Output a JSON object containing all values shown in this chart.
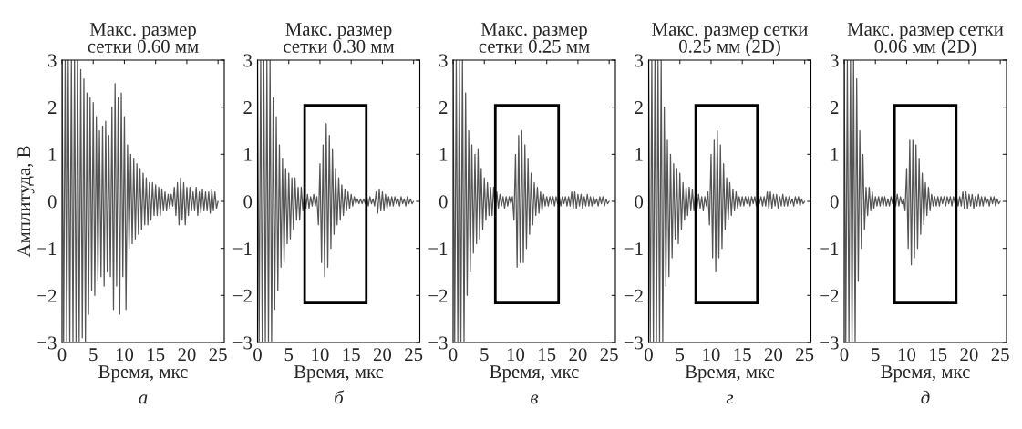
{
  "chart_data": [
    {
      "type": "line",
      "title": "Макс. размер\nсетки 0.60 мм",
      "xlabel": "Время, мкс",
      "ylabel": "Амплитуда, В",
      "annotations": [
        "а"
      ],
      "xlim": [
        0,
        26
      ],
      "xticks": [
        0,
        5,
        10,
        15,
        20,
        25
      ],
      "ylim": [
        -3,
        3
      ],
      "yticks": [
        {
          "value": -3,
          "label": "−3"
        },
        {
          "value": -2,
          "label": "−2"
        },
        {
          "value": -1,
          "label": "−1"
        },
        0,
        1,
        2,
        3
      ],
      "series": [
        {
          "color": "#555555",
          "x": [
            0,
            0.25,
            0.5,
            0.75,
            1,
            1.25,
            1.5,
            1.75,
            2,
            2.25,
            2.5,
            2.75,
            3,
            3.25,
            3.5,
            3.75,
            4,
            4.25,
            4.5,
            4.75,
            5,
            5.25,
            5.5,
            5.75,
            6,
            6.25,
            6.5,
            6.75,
            7,
            7.25,
            7.5,
            7.75,
            8,
            8.25,
            8.5,
            8.75,
            9,
            9.25,
            9.5,
            9.75,
            10,
            10.25,
            10.5,
            10.75,
            11,
            11.25,
            11.5,
            11.75,
            12,
            12.25,
            12.5,
            12.75,
            13,
            13.25,
            13.5,
            13.75,
            14,
            14.25,
            14.5,
            14.75,
            15,
            15.25,
            15.5,
            15.75,
            16,
            16.25,
            16.5,
            16.75,
            17,
            17.25,
            17.5,
            17.75,
            18,
            18.25,
            18.5,
            18.75,
            19,
            19.25,
            19.5,
            19.75,
            20,
            20.25,
            20.5,
            20.75,
            21,
            21.25,
            21.5,
            21.75,
            22,
            22.25,
            22.5,
            22.75,
            23,
            23.25,
            23.5,
            23.75,
            24,
            24.25,
            24.5,
            24.75,
            25
          ],
          "values": [
            3,
            -3,
            3,
            -3,
            3,
            -3,
            3,
            -3,
            3,
            -3,
            3,
            -3,
            2.8,
            -2.9,
            2.6,
            -3,
            2.3,
            -2.4,
            2.2,
            -1.9,
            2.1,
            -2.0,
            1.8,
            -1.7,
            1.5,
            -1.6,
            1.6,
            -1.8,
            1.7,
            -1.5,
            1.4,
            -1.6,
            2.0,
            -2.3,
            2.5,
            -1.8,
            2.2,
            -2.4,
            2.3,
            -1.6,
            1.8,
            -2.3,
            1.2,
            -1.0,
            1.0,
            -0.9,
            0.9,
            -0.8,
            0.8,
            -0.7,
            0.7,
            -0.6,
            0.6,
            -0.5,
            0.5,
            -0.5,
            0.4,
            -0.4,
            0.4,
            -0.3,
            0.35,
            -0.3,
            0.3,
            -0.3,
            0.25,
            -0.2,
            0.2,
            -0.2,
            0.15,
            -0.15,
            0.15,
            -0.1,
            0.3,
            -0.3,
            0.4,
            -0.5,
            0.5,
            -0.4,
            0.4,
            -0.5,
            0.3,
            -0.3,
            0.3,
            -0.2,
            0.2,
            -0.2,
            0.3,
            -0.3,
            0.2,
            -0.25,
            0.25,
            -0.2,
            0.2,
            -0.2,
            0.2,
            -0.25,
            0.25,
            -0.2,
            0.2,
            -0.15,
            0
          ]
        }
      ]
    },
    {
      "type": "line",
      "title": "Макс. размер\nсетки 0.30 мм",
      "xlabel": "Время, мкс",
      "annotations": [
        "б"
      ],
      "xlim": [
        0,
        26
      ],
      "xticks": [
        0,
        5,
        10,
        15,
        20,
        25
      ],
      "ylim": [
        -3,
        3
      ],
      "yticks": [
        {
          "value": -3,
          "label": "−3"
        },
        {
          "value": -2,
          "label": "−2"
        },
        {
          "value": -1,
          "label": "−1"
        },
        0,
        1,
        2,
        3
      ],
      "series": [
        {
          "color": "#555555",
          "x": [
            0,
            0.25,
            0.5,
            0.75,
            1,
            1.25,
            1.5,
            1.75,
            2,
            2.25,
            2.5,
            2.75,
            3,
            3.25,
            3.5,
            3.75,
            4,
            4.25,
            4.5,
            4.75,
            5,
            5.25,
            5.5,
            5.75,
            6,
            6.25,
            6.5,
            6.75,
            7,
            7.25,
            7.5,
            7.75,
            8,
            8.25,
            8.5,
            8.75,
            9,
            9.25,
            9.5,
            9.75,
            10,
            10.25,
            10.5,
            10.75,
            11,
            11.25,
            11.5,
            11.75,
            12,
            12.25,
            12.5,
            12.75,
            13,
            13.25,
            13.5,
            13.75,
            14,
            14.25,
            14.5,
            14.75,
            15,
            15.25,
            15.5,
            15.75,
            16,
            16.25,
            16.5,
            16.75,
            17,
            17.25,
            17.5,
            17.75,
            18,
            18.25,
            18.5,
            18.75,
            19,
            19.25,
            19.5,
            19.75,
            20,
            20.25,
            20.5,
            20.75,
            21,
            21.25,
            21.5,
            21.75,
            22,
            22.25,
            22.5,
            22.75,
            23,
            23.25,
            23.5,
            23.75,
            24,
            24.25,
            24.5,
            24.75,
            25
          ],
          "values": [
            3,
            -3,
            3,
            -3,
            3,
            -3,
            3,
            -3,
            3,
            -3,
            2.2,
            -2.3,
            1.8,
            -1.9,
            1.2,
            -1.4,
            0.9,
            -1.3,
            0.7,
            -0.9,
            0.6,
            -0.8,
            0.5,
            -0.6,
            0.5,
            -0.4,
            0.3,
            -0.4,
            0.3,
            -0.2,
            0.2,
            -0.15,
            0.15,
            -0.15,
            0.1,
            -0.1,
            0.15,
            -0.1,
            0.1,
            -0.5,
            0.8,
            -1.3,
            1.2,
            -1.6,
            1.65,
            -1.4,
            1.4,
            -1.0,
            1.1,
            -0.7,
            0.7,
            -0.5,
            0.5,
            -0.4,
            0.35,
            -0.3,
            0.25,
            -0.2,
            0.2,
            -0.15,
            0.15,
            -0.1,
            0.1,
            -0.05,
            0.05,
            -0.05,
            0.05,
            -0.05,
            0.05,
            -0.05,
            0.1,
            -0.1,
            0.1,
            -0.05,
            0.05,
            -0.1,
            0.2,
            -0.25,
            0.25,
            -0.2,
            0.2,
            -0.2,
            0.15,
            -0.15,
            0.1,
            -0.1,
            0.1,
            -0.1,
            0.1,
            -0.05,
            0.05,
            -0.1,
            0.1,
            -0.05,
            0.05,
            -0.1,
            0.1,
            -0.05,
            0.05,
            -0.05,
            0
          ]
        }
      ]
    },
    {
      "type": "line",
      "title": "Макс. размер\nсетки 0.25 мм",
      "xlabel": "Время, мкс",
      "annotations": [
        "в"
      ],
      "xlim": [
        0,
        26
      ],
      "xticks": [
        0,
        5,
        10,
        15,
        20,
        25
      ],
      "ylim": [
        -3,
        3
      ],
      "yticks": [
        {
          "value": -3,
          "label": "−3"
        },
        {
          "value": -2,
          "label": "−2"
        },
        {
          "value": -1,
          "label": "−1"
        },
        0,
        1,
        2,
        3
      ],
      "series": [
        {
          "color": "#555555",
          "x": [
            0,
            0.25,
            0.5,
            0.75,
            1,
            1.25,
            1.5,
            1.75,
            2,
            2.25,
            2.5,
            2.75,
            3,
            3.25,
            3.5,
            3.75,
            4,
            4.25,
            4.5,
            4.75,
            5,
            5.25,
            5.5,
            5.75,
            6,
            6.25,
            6.5,
            6.75,
            7,
            7.25,
            7.5,
            7.75,
            8,
            8.25,
            8.5,
            8.75,
            9,
            9.25,
            9.5,
            9.75,
            10,
            10.25,
            10.5,
            10.75,
            11,
            11.25,
            11.5,
            11.75,
            12,
            12.25,
            12.5,
            12.75,
            13,
            13.25,
            13.5,
            13.75,
            14,
            14.25,
            14.5,
            14.75,
            15,
            15.25,
            15.5,
            15.75,
            16,
            16.25,
            16.5,
            16.75,
            17,
            17.25,
            17.5,
            17.75,
            18,
            18.25,
            18.5,
            18.75,
            19,
            19.25,
            19.5,
            19.75,
            20,
            20.25,
            20.5,
            20.75,
            21,
            21.25,
            21.5,
            21.75,
            22,
            22.25,
            22.5,
            22.75,
            23,
            23.25,
            23.5,
            23.75,
            24,
            24.25,
            24.5,
            24.75,
            25
          ],
          "values": [
            3,
            -3,
            3,
            -3,
            3,
            -3,
            3,
            -3,
            2.3,
            -2.0,
            1.5,
            -1.5,
            1.2,
            -1.1,
            1.0,
            -0.9,
            1.1,
            -0.8,
            0.7,
            -0.6,
            0.5,
            -0.4,
            0.4,
            -0.3,
            0.3,
            -0.3,
            0.3,
            -0.2,
            0.2,
            -0.15,
            0.15,
            -0.1,
            0.1,
            -0.15,
            0.1,
            -0.1,
            0.1,
            -0.05,
            0.1,
            -0.4,
            1.0,
            -1.4,
            1.4,
            -1.3,
            1.5,
            -1.3,
            1.2,
            -1.0,
            0.9,
            -0.7,
            0.6,
            -0.5,
            0.4,
            -0.3,
            0.3,
            -0.25,
            0.2,
            -0.2,
            0.15,
            -0.1,
            0.1,
            -0.1,
            0.1,
            -0.05,
            0.1,
            -0.1,
            0.1,
            -0.05,
            0.1,
            -0.1,
            0.1,
            -0.05,
            0.1,
            -0.1,
            0.1,
            -0.1,
            0.2,
            -0.15,
            0.2,
            -0.15,
            0.15,
            -0.1,
            0.15,
            -0.15,
            0.1,
            -0.1,
            0.15,
            -0.1,
            0.1,
            -0.1,
            0.1,
            -0.05,
            0.05,
            -0.1,
            0.1,
            -0.05,
            0.1,
            -0.1,
            0.05,
            -0.05,
            0
          ]
        }
      ]
    },
    {
      "type": "line",
      "title": "Макс. размер сетки\n0.25 мм (2D)",
      "xlabel": "Время, мкс",
      "annotations": [
        "г"
      ],
      "xlim": [
        0,
        26
      ],
      "xticks": [
        0,
        5,
        10,
        15,
        20,
        25
      ],
      "ylim": [
        -3,
        3
      ],
      "yticks": [
        {
          "value": -3,
          "label": "−3"
        },
        {
          "value": -2,
          "label": "−2"
        },
        {
          "value": -1,
          "label": "−1"
        },
        0,
        1,
        2,
        3
      ],
      "series": [
        {
          "color": "#555555",
          "x": [
            0,
            0.25,
            0.5,
            0.75,
            1,
            1.25,
            1.5,
            1.75,
            2,
            2.25,
            2.5,
            2.75,
            3,
            3.25,
            3.5,
            3.75,
            4,
            4.25,
            4.5,
            4.75,
            5,
            5.25,
            5.5,
            5.75,
            6,
            6.25,
            6.5,
            6.75,
            7,
            7.25,
            7.5,
            7.75,
            8,
            8.25,
            8.5,
            8.75,
            9,
            9.25,
            9.5,
            9.75,
            10,
            10.25,
            10.5,
            10.75,
            11,
            11.25,
            11.5,
            11.75,
            12,
            12.25,
            12.5,
            12.75,
            13,
            13.25,
            13.5,
            13.75,
            14,
            14.25,
            14.5,
            14.75,
            15,
            15.25,
            15.5,
            15.75,
            16,
            16.25,
            16.5,
            16.75,
            17,
            17.25,
            17.5,
            17.75,
            18,
            18.25,
            18.5,
            18.75,
            19,
            19.25,
            19.5,
            19.75,
            20,
            20.25,
            20.5,
            20.75,
            21,
            21.25,
            21.5,
            21.75,
            22,
            22.25,
            22.5,
            22.75,
            23,
            23.25,
            23.5,
            23.75,
            24,
            24.25,
            24.5,
            24.75,
            25
          ],
          "values": [
            3,
            -3,
            3,
            -3,
            3,
            -3,
            3,
            -3,
            3,
            -3,
            2.0,
            -1.8,
            1.3,
            -1.6,
            1.0,
            -1.2,
            0.8,
            -0.8,
            0.7,
            -0.9,
            0.6,
            -0.6,
            0.4,
            -0.4,
            0.3,
            -0.3,
            0.3,
            -0.2,
            0.25,
            -0.2,
            0.2,
            -0.15,
            0.15,
            -0.15,
            0.1,
            -0.2,
            0.1,
            -0.1,
            0.2,
            -0.5,
            1.0,
            -1.2,
            1.3,
            -1.5,
            1.5,
            -1.2,
            1.2,
            -1.0,
            0.8,
            -0.6,
            0.5,
            -0.4,
            0.4,
            -0.3,
            0.25,
            -0.2,
            0.2,
            -0.15,
            0.1,
            -0.1,
            0.1,
            -0.1,
            0.1,
            -0.05,
            0.1,
            -0.1,
            0.1,
            -0.05,
            0.1,
            -0.1,
            0.1,
            -0.05,
            0.1,
            -0.1,
            0.1,
            -0.1,
            0.2,
            -0.15,
            0.2,
            -0.15,
            0.15,
            -0.1,
            0.15,
            -0.15,
            0.1,
            -0.1,
            0.15,
            -0.1,
            0.1,
            -0.1,
            0.1,
            -0.05,
            0.05,
            -0.1,
            0.1,
            -0.05,
            0.1,
            -0.1,
            0.05,
            -0.05,
            0
          ]
        }
      ]
    },
    {
      "type": "line",
      "title": "Макс. размер сетки\n0.06 мм (2D)",
      "xlabel": "Время, мкс",
      "annotations": [
        "д"
      ],
      "xlim": [
        0,
        26
      ],
      "xticks": [
        0,
        5,
        10,
        15,
        20,
        25
      ],
      "ylim": [
        -3,
        3
      ],
      "yticks": [
        {
          "value": -3,
          "label": "−3"
        },
        {
          "value": -2,
          "label": "−2"
        },
        {
          "value": -1,
          "label": "−1"
        },
        0,
        1,
        2,
        3
      ],
      "series": [
        {
          "color": "#555555",
          "x": [
            0,
            0.25,
            0.5,
            0.75,
            1,
            1.25,
            1.5,
            1.75,
            2,
            2.25,
            2.5,
            2.75,
            3,
            3.25,
            3.5,
            3.75,
            4,
            4.25,
            4.5,
            4.75,
            5,
            5.25,
            5.5,
            5.75,
            6,
            6.25,
            6.5,
            6.75,
            7,
            7.25,
            7.5,
            7.75,
            8,
            8.25,
            8.5,
            8.75,
            9,
            9.25,
            9.5,
            9.75,
            10,
            10.25,
            10.5,
            10.75,
            11,
            11.25,
            11.5,
            11.75,
            12,
            12.25,
            12.5,
            12.75,
            13,
            13.25,
            13.5,
            13.75,
            14,
            14.25,
            14.5,
            14.75,
            15,
            15.25,
            15.5,
            15.75,
            16,
            16.25,
            16.5,
            16.75,
            17,
            17.25,
            17.5,
            17.75,
            18,
            18.25,
            18.5,
            18.75,
            19,
            19.25,
            19.5,
            19.75,
            20,
            20.25,
            20.5,
            20.75,
            21,
            21.25,
            21.5,
            21.75,
            22,
            22.25,
            22.5,
            22.75,
            23,
            23.25,
            23.5,
            23.75,
            24,
            24.25,
            24.5,
            24.75,
            25
          ],
          "values": [
            3,
            -3,
            3,
            -3,
            3,
            -3,
            3,
            -3,
            2.6,
            -1.7,
            1.5,
            -1.0,
            1.0,
            -0.6,
            0.3,
            -0.3,
            0.3,
            -0.2,
            0.2,
            -0.15,
            0.1,
            -0.1,
            0.1,
            -0.1,
            0.1,
            -0.1,
            0.1,
            -0.1,
            0.05,
            -0.1,
            0.1,
            -0.05,
            0.1,
            -0.1,
            0.15,
            -0.1,
            0.1,
            -0.05,
            0.05,
            -0.2,
            0.7,
            -1.0,
            1.3,
            -1.35,
            1.3,
            -1.2,
            1.2,
            -1.0,
            0.9,
            -0.7,
            0.6,
            -0.5,
            0.4,
            -0.3,
            0.3,
            -0.2,
            0.15,
            -0.1,
            0.1,
            -0.1,
            0.1,
            -0.1,
            0.1,
            -0.05,
            0.1,
            -0.1,
            0.1,
            -0.05,
            0.1,
            -0.1,
            0.1,
            -0.05,
            0.1,
            -0.1,
            0.1,
            -0.1,
            0.2,
            -0.15,
            0.2,
            -0.15,
            0.15,
            -0.1,
            0.15,
            -0.15,
            0.1,
            -0.1,
            0.15,
            -0.1,
            0.1,
            -0.1,
            0.1,
            -0.05,
            0.05,
            -0.1,
            0.1,
            -0.05,
            0.1,
            -0.1,
            0.05,
            -0.05,
            0
          ]
        }
      ]
    }
  ]
}
